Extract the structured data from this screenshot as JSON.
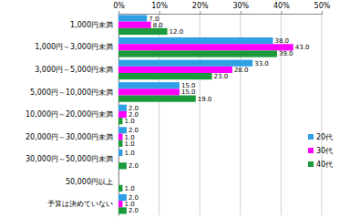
{
  "chart_data": {
    "type": "bar",
    "orientation": "horizontal",
    "categories": [
      "1,000円未満",
      "1,000円～3,000円未満",
      "3,000円～5,000円未満",
      "5,000円～10,000円未満",
      "10,000円～20,000円未満",
      "20,000円～30,000円未満",
      "30,000円～50,000円未満",
      "50,000円以上",
      "予算は決めていない"
    ],
    "series": [
      {
        "name": "20代",
        "color": "#2f9fe6",
        "values": [
          7,
          38,
          33,
          15,
          2,
          2,
          1,
          null,
          2
        ],
        "value_labels": [
          "7.0",
          "38.0",
          "33.0",
          "15.0",
          "2.0",
          "2.0",
          "1.0",
          null,
          "2.0"
        ]
      },
      {
        "name": "30代",
        "color": "#ff00ff",
        "values": [
          8,
          43,
          28,
          15,
          2,
          1,
          null,
          null,
          1
        ],
        "value_labels": [
          "8.0",
          "43.0",
          "28.0",
          "15.0",
          "2.0",
          "1.0",
          null,
          null,
          "1.0"
        ]
      },
      {
        "name": "40代",
        "color": "#1a9a3a",
        "values": [
          12,
          39,
          23,
          19,
          1,
          1,
          2,
          1,
          2
        ],
        "value_labels": [
          "12.0",
          "39.0",
          "23.0",
          "19.0",
          "1.0",
          "1.0",
          "2.0",
          "1.0",
          "2.0"
        ]
      }
    ],
    "xlim": [
      0,
      50
    ],
    "xticks": [
      {
        "value": 0,
        "label": "0%"
      },
      {
        "value": 10,
        "label": "10%"
      },
      {
        "value": 20,
        "label": "20%"
      },
      {
        "value": 30,
        "label": "30%"
      },
      {
        "value": 40,
        "label": "40%"
      },
      {
        "value": 50,
        "label": "50%"
      }
    ],
    "grid": true,
    "legend": "right",
    "data_labels": true
  }
}
